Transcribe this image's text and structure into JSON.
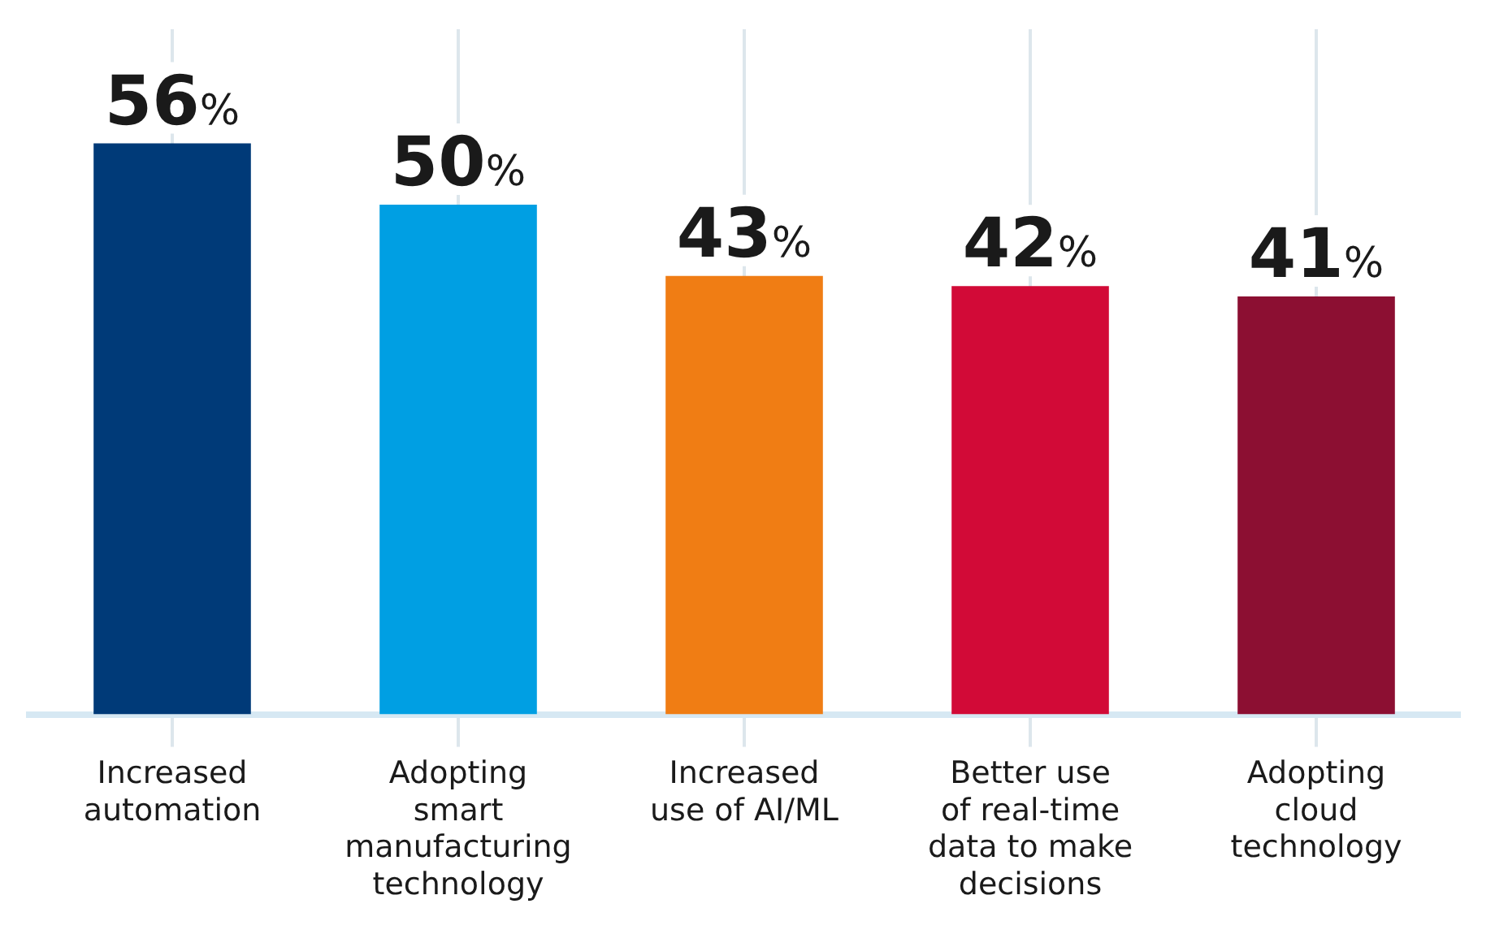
{
  "chart_data": {
    "type": "bar",
    "categories": [
      "Increased automation",
      "Adopting smart manufacturing technology",
      "Increased use of AI/ML",
      "Better use of real-time data to make decisions",
      "Adopting cloud technology"
    ],
    "values": [
      56,
      50,
      43,
      42,
      41
    ],
    "colors": [
      "#003a78",
      "#009fe3",
      "#f07d14",
      "#d20a37",
      "#8c0f32"
    ],
    "value_labels": [
      "56%",
      "50%",
      "43%",
      "42%",
      "41%"
    ],
    "grid": "x",
    "legend": false
  }
}
